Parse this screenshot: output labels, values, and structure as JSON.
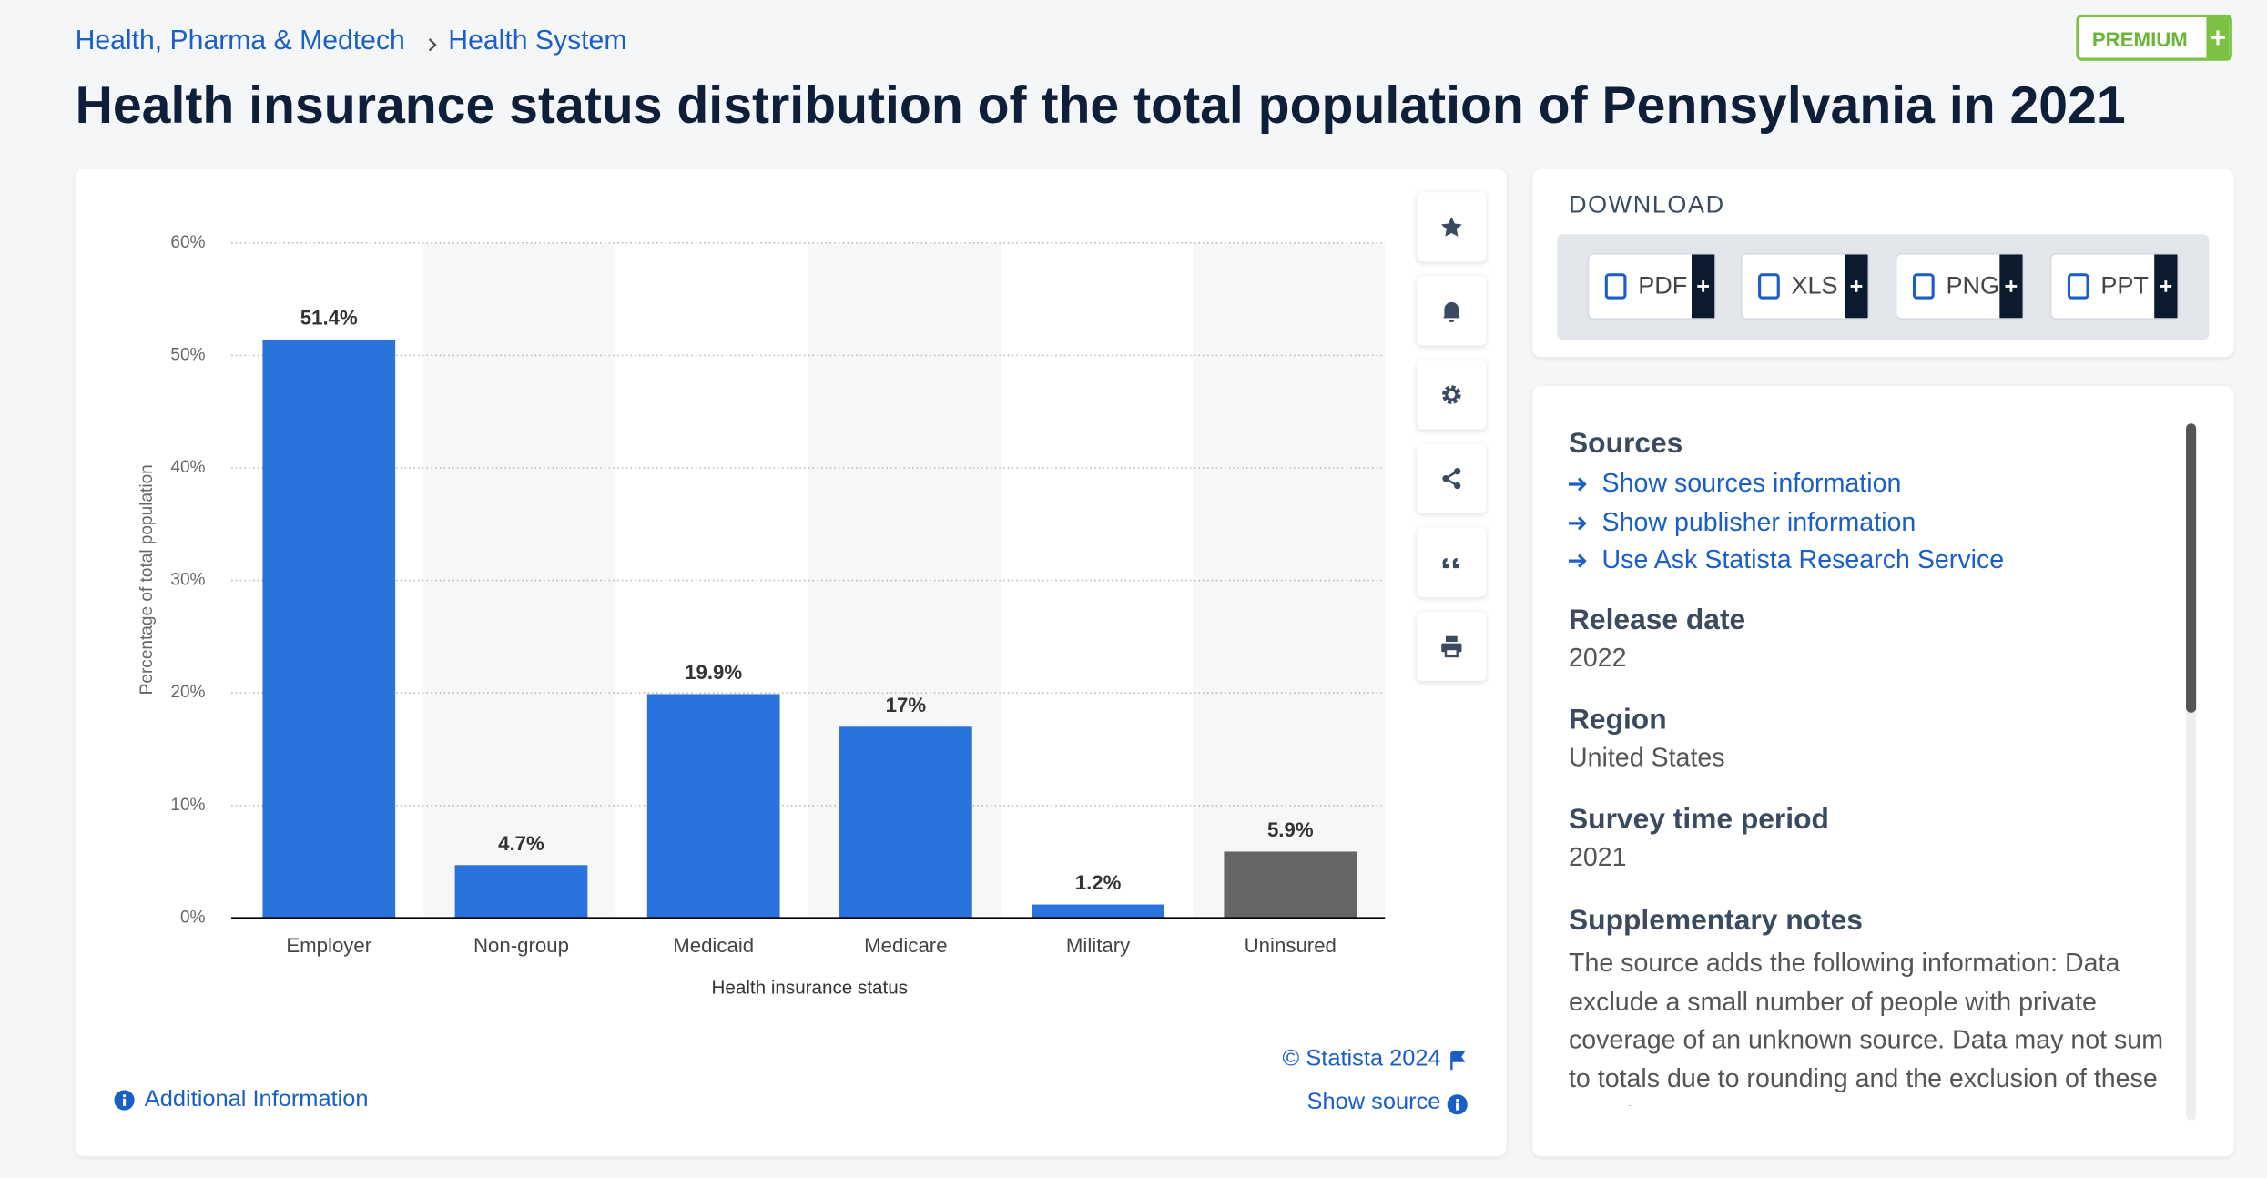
{
  "breadcrumb": [
    "Health, Pharma & Medtech",
    "Health System"
  ],
  "premium": "PREMIUM",
  "title": "Health insurance status distribution of the total population of Pennsylvania in 2021",
  "chart_data": {
    "type": "bar",
    "x_label": "Health insurance status",
    "y_label": "Percentage of total population",
    "categories": [
      "Employer",
      "Non-group",
      "Medicaid",
      "Medicare",
      "Military",
      "Uninsured"
    ],
    "values": [
      51.4,
      4.7,
      19.9,
      17,
      1.2,
      5.9
    ],
    "value_labels": [
      "51.4%",
      "4.7%",
      "19.9%",
      "17%",
      "1.2%",
      "5.9%"
    ],
    "colors": [
      "#2a73dd",
      "#2a73dd",
      "#2a73dd",
      "#2a73dd",
      "#2a73dd",
      "#666666"
    ],
    "ylim": [
      0,
      60
    ],
    "yticks": [
      {
        "value": 0,
        "label": "0%"
      },
      {
        "value": 10,
        "label": "10%"
      },
      {
        "value": 20,
        "label": "20%"
      },
      {
        "value": 30,
        "label": "30%"
      },
      {
        "value": 40,
        "label": "40%"
      },
      {
        "value": 50,
        "label": "50%"
      },
      {
        "value": 60,
        "label": "60%"
      }
    ],
    "grid": true
  },
  "chart_footer": {
    "copyright": "© Statista 2024",
    "show_source": "Show source",
    "additional": "Additional Information"
  },
  "download": {
    "title": "DOWNLOAD",
    "buttons": [
      "PDF",
      "XLS",
      "PNG",
      "PPT"
    ]
  },
  "sources": {
    "title": "Sources",
    "links": [
      "Show sources information",
      "Show publisher information",
      "Use Ask Statista Research Service"
    ],
    "fields": [
      {
        "label": "Release date",
        "value": "2022"
      },
      {
        "label": "Region",
        "value": "United States"
      },
      {
        "label": "Survey time period",
        "value": "2021"
      },
      {
        "label": "Supplementary notes",
        "value": "The source adds the following information: Data exclude a small number of people with private coverage of an unknown source. Data may not sum to totals due to rounding and the exclusion of these people"
      }
    ]
  }
}
